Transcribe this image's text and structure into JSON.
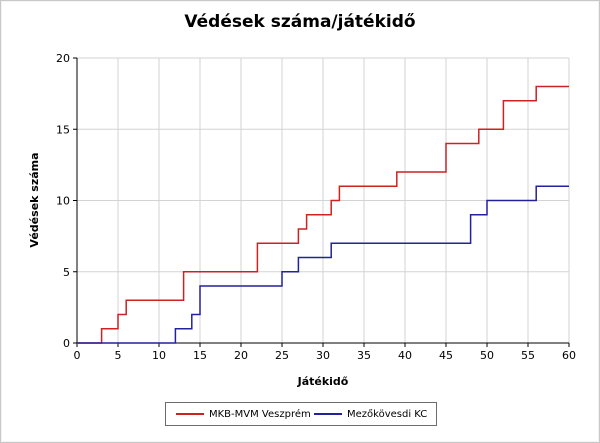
{
  "chart_data": {
    "type": "line",
    "step": true,
    "title": "Védések száma/játékidő",
    "xlabel": "Játékidő",
    "ylabel": "Védések száma",
    "xlim": [
      0,
      60
    ],
    "ylim": [
      0,
      20
    ],
    "xticks": [
      0,
      5,
      10,
      15,
      20,
      25,
      30,
      35,
      40,
      45,
      50,
      55,
      60
    ],
    "yticks": [
      0,
      5,
      10,
      15,
      20
    ],
    "grid": true,
    "legend_position": "bottom",
    "series": [
      {
        "name": "MKB-MVM Veszprém",
        "color": "#cc2222",
        "x": [
          0,
          3,
          5,
          6,
          13,
          22,
          27,
          28,
          31,
          32,
          39,
          45,
          49,
          52,
          56,
          60
        ],
        "y": [
          0,
          1,
          2,
          3,
          5,
          7,
          8,
          9,
          10,
          11,
          12,
          14,
          15,
          17,
          18,
          18
        ]
      },
      {
        "name": "Mezőkövesdi KC",
        "color": "#22229a",
        "x": [
          0,
          12,
          14,
          15,
          25,
          27,
          31,
          48,
          50,
          56,
          60
        ],
        "y": [
          0,
          1,
          2,
          4,
          5,
          6,
          7,
          9,
          10,
          11,
          11
        ]
      }
    ]
  }
}
